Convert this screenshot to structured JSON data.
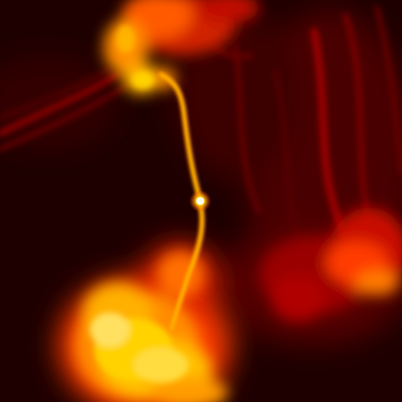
{
  "image": {
    "subject": "radio-galaxy-false-color",
    "colormap": [
      "#1e0000",
      "#5a0000",
      "#b40000",
      "#ff3a00",
      "#ff8c00",
      "#ffd200",
      "#fff6a0"
    ]
  }
}
